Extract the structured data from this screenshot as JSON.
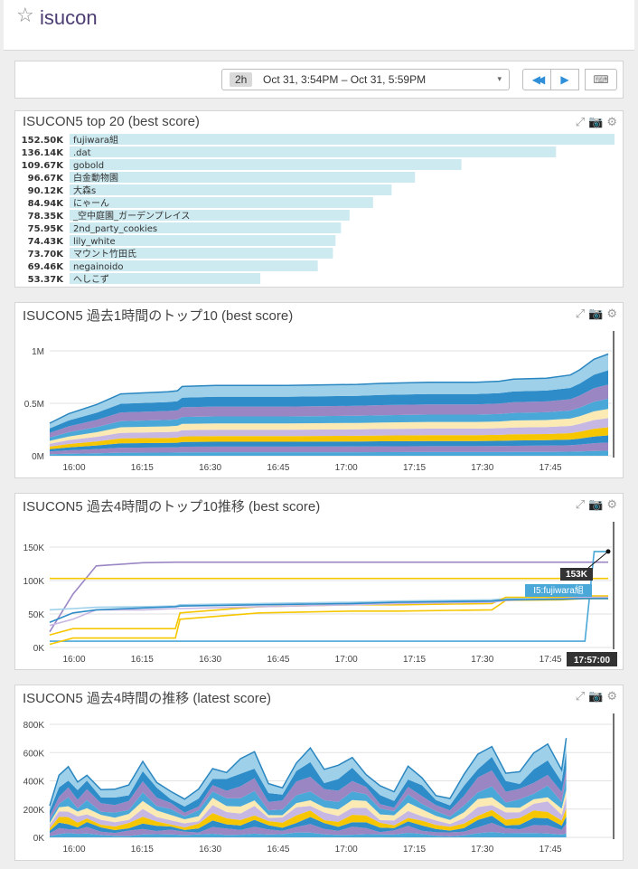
{
  "dashboard": {
    "title": "isucon"
  },
  "toolbar": {
    "timeframe_badge": "2h",
    "timeframe_range": "Oct 31, 3:54PM – Oct 31, 5:59PM",
    "caret": "▾",
    "back_glyph": "◀◀",
    "play_glyph": "▶",
    "keyboard_glyph": "⌨"
  },
  "icons": {
    "star": "☆",
    "expand": "⤢",
    "camera": "📷",
    "gear": "⚙"
  },
  "colors": {
    "accent": "#2f8fd8",
    "bar": "#cdeaf0",
    "dark_blue": "#2e8cc8",
    "mid_blue": "#4aa8d8",
    "light_blue": "#9ed0ea",
    "purple": "#9b86c4",
    "lavender": "#c7b7e3",
    "yellow": "#f6c700",
    "cream": "#fbeab4"
  },
  "panels": [
    {
      "title": "ISUCON5 top 20 (best score)"
    },
    {
      "title": "ISUCON5 過去1時間のトップ10 (best score)"
    },
    {
      "title": "ISUCON5 過去4時間のトップ10推移 (best score)"
    },
    {
      "title": "ISUCON5 過去4時間の推移 (latest score)"
    }
  ],
  "chart_data": [
    {
      "type": "bar",
      "title": "ISUCON5 top 20 (best score)",
      "value_labels": [
        "152.50K",
        "136.14K",
        "109.67K",
        "96.67K",
        "90.12K",
        "84.94K",
        "78.35K",
        "75.95K",
        "74.43K",
        "73.70K",
        "69.46K",
        "53.37K"
      ],
      "categories": [
        "fujiwara組",
        ".dat",
        "gobold",
        "白金動物園",
        "大森s",
        "にゃーん",
        "_空中庭園_ガーデンプレイス",
        "2nd_party_cookies",
        "lily_white",
        "マウント竹田氏",
        "negainoido",
        "へしこず"
      ],
      "values": [
        152500,
        136140,
        109670,
        96670,
        90120,
        84940,
        78350,
        75950,
        74430,
        73700,
        69460,
        53370
      ]
    },
    {
      "type": "area",
      "title": "ISUCON5 過去1時間のトップ10 (best score)",
      "x_ticks": [
        "16:00",
        "16:15",
        "16:30",
        "16:45",
        "17:00",
        "17:15",
        "17:30",
        "17:45"
      ],
      "y_ticks": [
        "0M",
        "0.5M",
        "1M"
      ],
      "ylim": [
        0,
        1000000
      ],
      "x": [
        "15:55",
        "15:59",
        "16:05",
        "16:10",
        "16:20",
        "16:22",
        "16:23",
        "16:30",
        "16:45",
        "17:00",
        "17:05",
        "17:15",
        "17:25",
        "17:30",
        "17:33",
        "17:40",
        "17:45",
        "17:47",
        "17:50",
        "17:53"
      ],
      "total": [
        310000,
        400000,
        490000,
        590000,
        610000,
        620000,
        660000,
        670000,
        670000,
        680000,
        690000,
        700000,
        700000,
        710000,
        730000,
        740000,
        770000,
        820000,
        920000,
        970000
      ]
    },
    {
      "type": "line",
      "title": "ISUCON5 過去4時間のトップ10推移 (best score)",
      "x_ticks": [
        "16:00",
        "16:15",
        "16:30",
        "16:45",
        "17:00",
        "17:15",
        "17:30",
        "17:45"
      ],
      "y_ticks": [
        "0K",
        "50K",
        "100K",
        "150K"
      ],
      "ylim": [
        0,
        160000
      ],
      "x": [
        "15:55",
        "16:00",
        "16:05",
        "16:15",
        "16:22",
        "16:23",
        "16:40",
        "17:00",
        "17:10",
        "17:30",
        "17:33",
        "17:45",
        "17:50",
        "17:52",
        "17:55"
      ],
      "series": [
        {
          "values": [
            25000,
            85000,
            130000,
            135000,
            136000,
            136000,
            136000,
            136000,
            136000,
            136000,
            136000,
            136000,
            136000,
            136000,
            136000
          ]
        },
        {
          "values": [
            110000,
            110000,
            110000,
            110000,
            110000,
            110000,
            110000,
            110000,
            110000,
            110000,
            110000,
            110000,
            110000,
            110000,
            110000
          ]
        },
        {
          "values": [
            10000,
            10000,
            10000,
            10000,
            10000,
            10000,
            10000,
            10000,
            10000,
            10000,
            10000,
            10000,
            10000,
            153000,
            153000
          ]
        },
        {
          "values": [
            60000,
            62000,
            64000,
            65000,
            66000,
            68000,
            70000,
            72000,
            74000,
            76000,
            78000,
            80000,
            80000,
            80000,
            80000
          ]
        },
        {
          "values": [
            20000,
            30000,
            30000,
            30000,
            30000,
            55000,
            65000,
            68000,
            68000,
            70000,
            80000,
            80000,
            82000,
            82000,
            82000
          ]
        },
        {
          "values": [
            5000,
            15000,
            15000,
            15000,
            15000,
            45000,
            55000,
            58000,
            58000,
            60000,
            75000,
            76000,
            78000,
            78000,
            78000
          ]
        },
        {
          "values": [
            35000,
            45000,
            60000,
            60000,
            62000,
            62000,
            65000,
            68000,
            70000,
            72000,
            75000,
            78000,
            80000,
            80000,
            80000
          ]
        },
        {
          "values": [
            40000,
            55000,
            60000,
            63000,
            65000,
            66000,
            68000,
            70000,
            72000,
            74000,
            76000,
            77000,
            78000,
            78000,
            78000
          ]
        }
      ],
      "tooltip_value": "153K",
      "tooltip_series": "I5:fujiwara組",
      "tooltip_time": "17:57:00"
    },
    {
      "type": "area",
      "title": "ISUCON5 過去4時間の推移 (latest score)",
      "x_ticks": [
        "16:00",
        "16:15",
        "16:30",
        "16:45",
        "17:00",
        "17:15",
        "17:30",
        "17:45"
      ],
      "y_ticks": [
        "0K",
        "200K",
        "400K",
        "600K",
        "800K"
      ],
      "ylim": [
        0,
        800000
      ],
      "x": [
        "15:55",
        "15:57",
        "15:59",
        "16:01",
        "16:03",
        "16:06",
        "16:09",
        "16:12",
        "16:15",
        "16:18",
        "16:21",
        "16:24",
        "16:27",
        "16:30",
        "16:33",
        "16:36",
        "16:39",
        "16:42",
        "16:45",
        "16:48",
        "16:51",
        "16:54",
        "16:57",
        "17:00",
        "17:03",
        "17:06",
        "17:09",
        "17:12",
        "17:15",
        "17:18",
        "17:21",
        "17:24",
        "17:27",
        "17:30",
        "17:33",
        "17:36",
        "17:39",
        "17:42",
        "17:45",
        "17:46"
      ],
      "total": [
        200000,
        380000,
        440000,
        340000,
        400000,
        300000,
        260000,
        330000,
        430000,
        360000,
        300000,
        230000,
        310000,
        460000,
        420000,
        560000,
        520000,
        310000,
        320000,
        480000,
        520000,
        420000,
        460000,
        500000,
        420000,
        330000,
        280000,
        450000,
        380000,
        250000,
        240000,
        350000,
        520000,
        560000,
        400000,
        420000,
        500000,
        580000,
        680000,
        650000
      ]
    }
  ]
}
